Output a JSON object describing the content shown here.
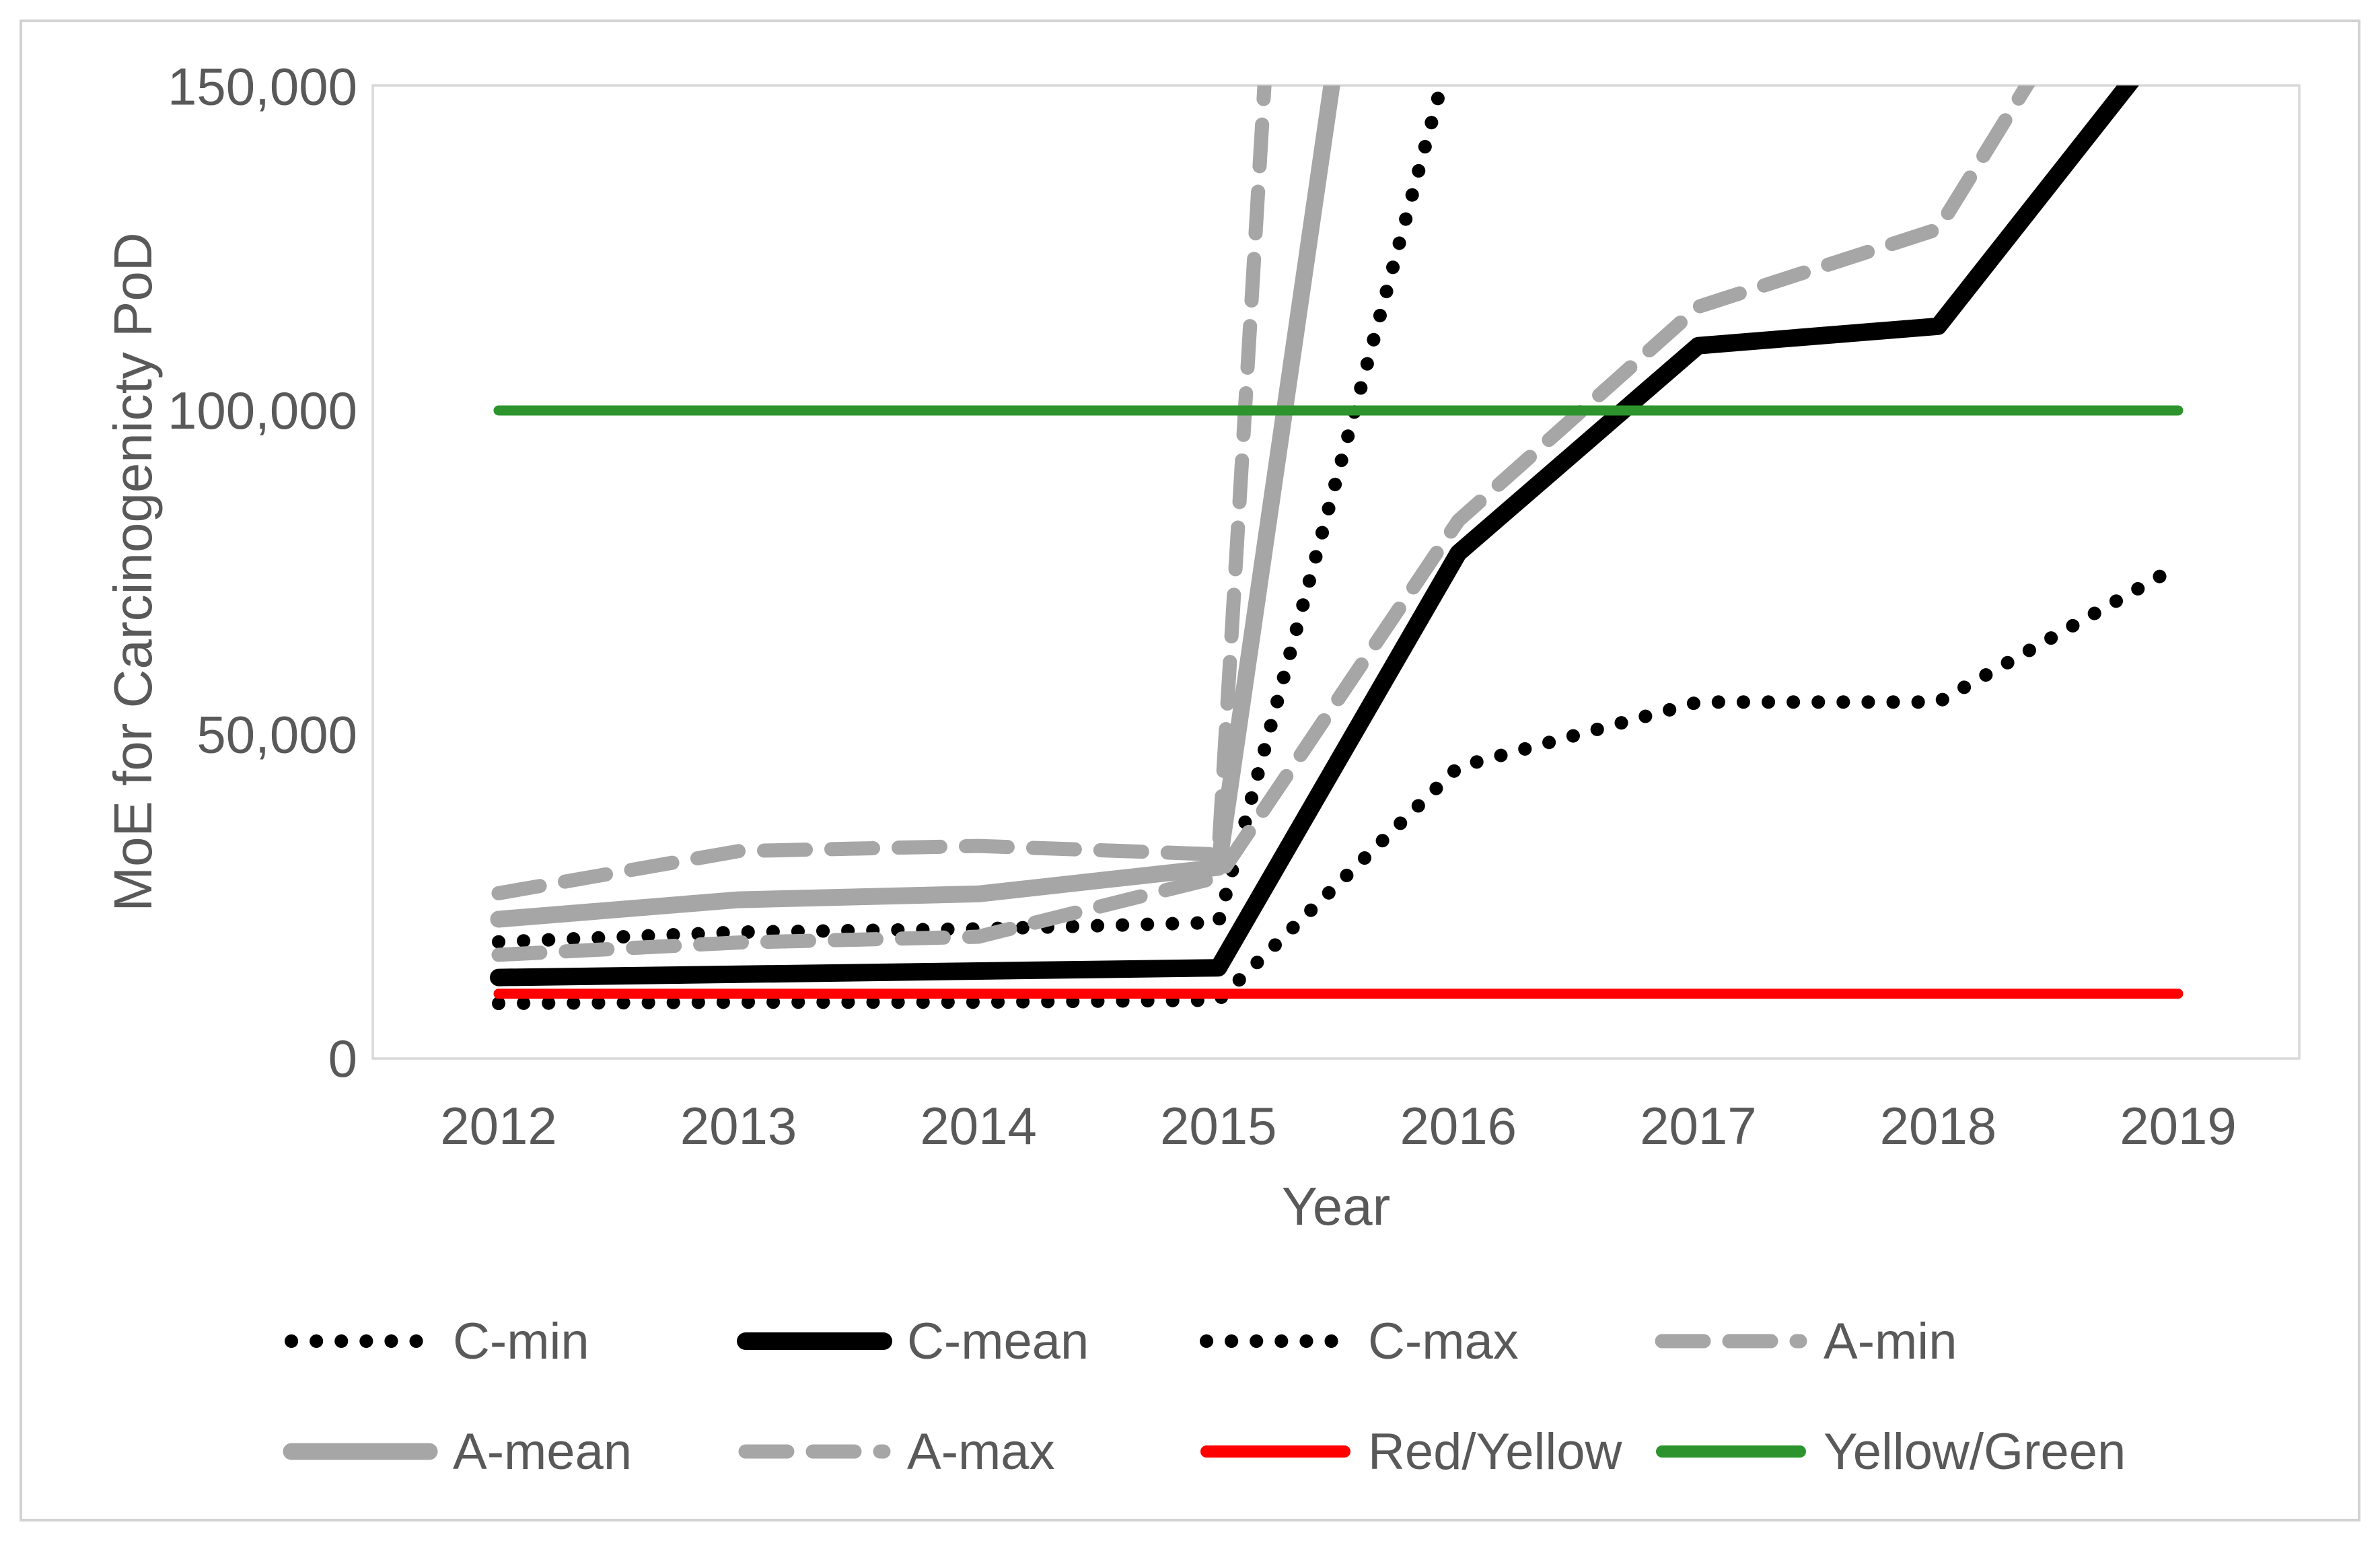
{
  "figure": {
    "background": "#ffffff",
    "outer_border_color": "#d2d2d2",
    "plot_border_color": "#d9d9d9",
    "text_color": "#595959"
  },
  "chart_data": {
    "type": "line",
    "title": "",
    "xlabel": "Year",
    "ylabel": "MoE for Carcinogenicty PoD",
    "categories": [
      2012,
      2013,
      2014,
      2015,
      2016,
      2017,
      2018,
      2019
    ],
    "x_tick_labels": [
      "2012",
      "2013",
      "2014",
      "2015",
      "2016",
      "2017",
      "2018",
      "2019"
    ],
    "y_ticks": [
      0,
      50000,
      100000,
      150000
    ],
    "y_tick_labels": [
      "0",
      "50,000",
      "100,000",
      "150,000"
    ],
    "ylim": [
      0,
      150000
    ],
    "grid": false,
    "legend_position": "bottom",
    "series": [
      {
        "name": "C-min",
        "color": "#000000",
        "style": "dotted",
        "width": 20,
        "values": [
          8500,
          8700,
          8700,
          9000,
          45000,
          55000,
          55000,
          76000
        ]
      },
      {
        "name": "C-mean",
        "color": "#000000",
        "style": "solid",
        "width": 26,
        "values": [
          12500,
          13000,
          13500,
          14000,
          78000,
          110000,
          113000,
          160000
        ]
      },
      {
        "name": "C-max",
        "color": "#000000",
        "style": "dotted",
        "width": 20,
        "values": [
          18000,
          19500,
          20000,
          21000,
          160000,
          null,
          null,
          null
        ]
      },
      {
        "name": "A-min",
        "color": "#a6a6a6",
        "style": "dashed",
        "width": 21,
        "values": [
          16000,
          17900,
          18800,
          28000,
          83000,
          116000,
          128000,
          188000
        ]
      },
      {
        "name": "A-mean",
        "color": "#a6a6a6",
        "style": "solid",
        "width": 25,
        "values": [
          21500,
          24500,
          25400,
          29500,
          285000,
          null,
          null,
          null
        ]
      },
      {
        "name": "A-max",
        "color": "#a6a6a6",
        "style": "dashed",
        "width": 21,
        "values": [
          25500,
          32000,
          32800,
          31500,
          650000,
          null,
          null,
          null
        ]
      },
      {
        "name": "Red/Yellow",
        "color": "#ff0000",
        "style": "solid",
        "width": 15,
        "values": [
          10000,
          10000,
          10000,
          10000,
          10000,
          10000,
          10000,
          10000
        ]
      },
      {
        "name": "Yellow/Green",
        "color": "#2d942d",
        "style": "solid",
        "width": 15,
        "values": [
          100000,
          100000,
          100000,
          100000,
          100000,
          100000,
          100000,
          100000
        ]
      }
    ],
    "legend_rows": [
      [
        "C-min",
        "C-mean",
        "C-max",
        "A-min"
      ],
      [
        "A-mean",
        "A-max",
        "Red/Yellow",
        "Yellow/Green"
      ]
    ]
  }
}
